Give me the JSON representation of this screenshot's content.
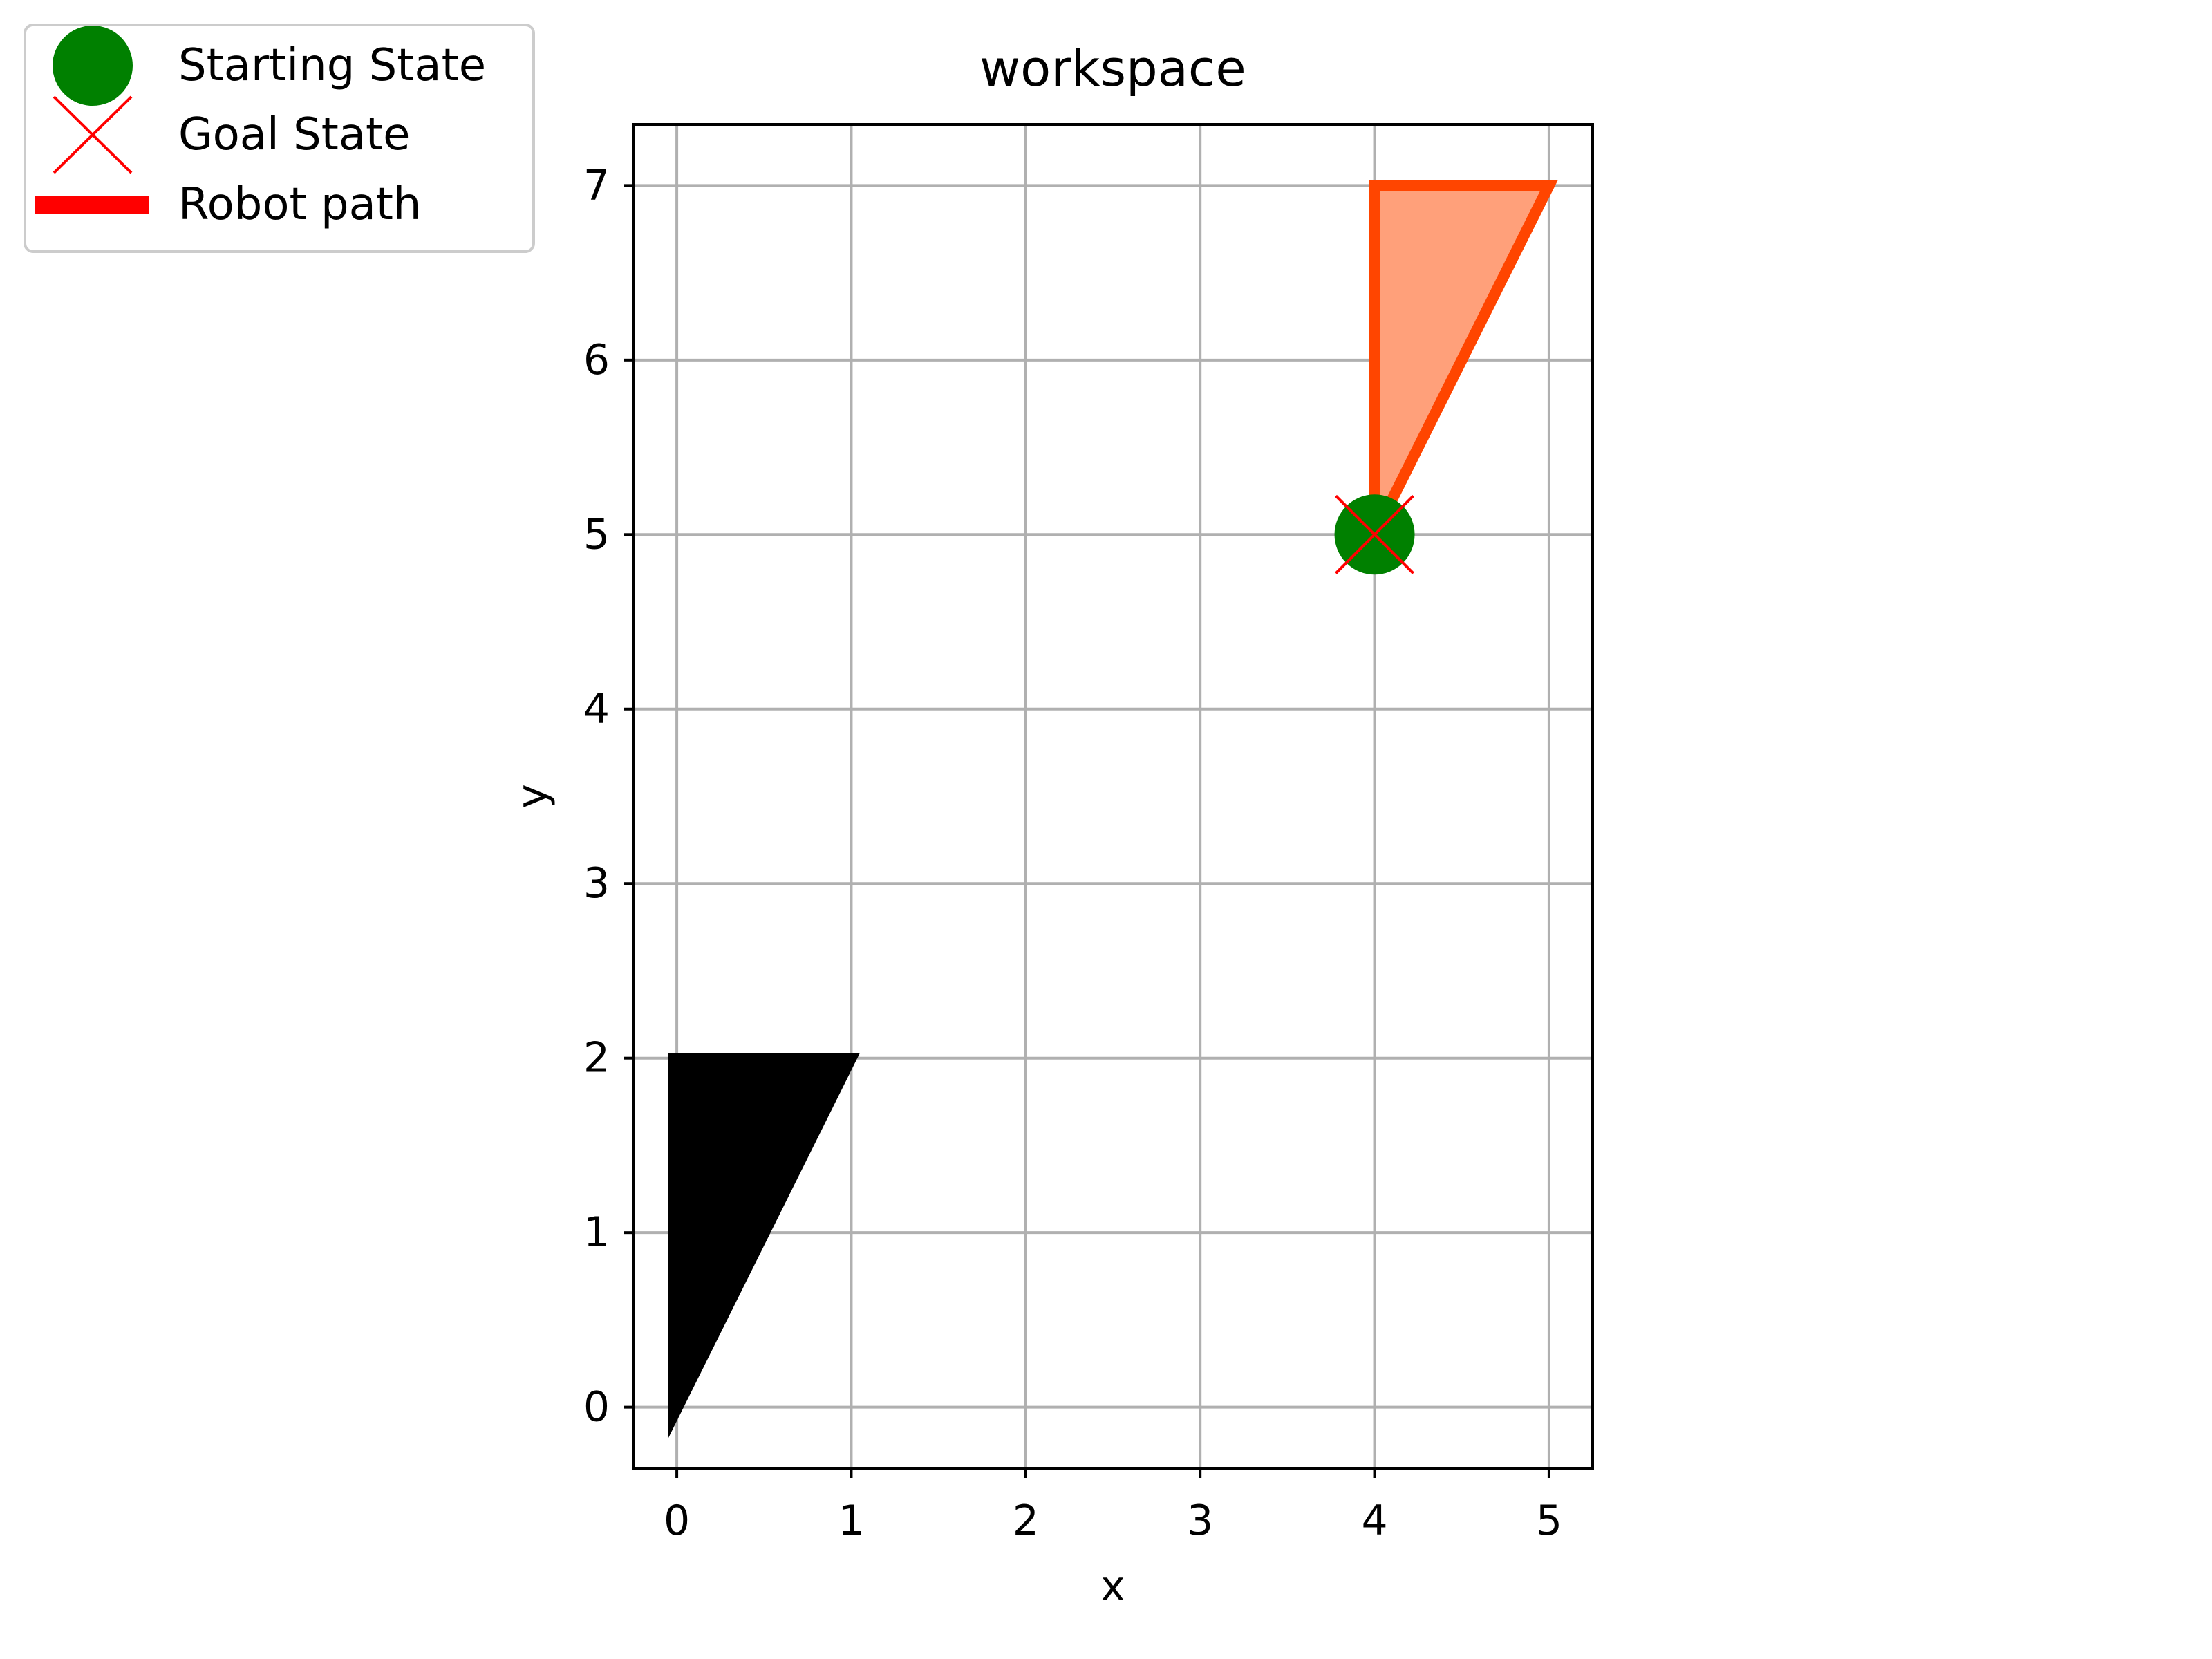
{
  "chart_data": {
    "type": "scatter",
    "title": "workspace",
    "xlabel": "x",
    "ylabel": "y",
    "xlim": [
      -0.25,
      5.25
    ],
    "ylim": [
      -0.35,
      7.35
    ],
    "xticks": [
      0,
      1,
      2,
      3,
      4,
      5
    ],
    "yticks": [
      0,
      1,
      2,
      3,
      4,
      5,
      6,
      7
    ],
    "grid": true,
    "legend": {
      "placement": "outside-top-left",
      "entries": [
        {
          "label": "Starting State",
          "marker": "circle",
          "color": "#008000"
        },
        {
          "label": "Goal State",
          "marker": "x",
          "color": "#ff0000"
        },
        {
          "label": "Robot path",
          "marker": "line",
          "color": "#ff0000"
        }
      ]
    },
    "obstacles": [
      {
        "vertices": [
          [
            -0.05,
            -0.18
          ],
          [
            -0.05,
            2.03
          ],
          [
            1.05,
            2.03
          ]
        ],
        "fill": "#000000"
      }
    ],
    "robot": {
      "vertices": [
        [
          4,
          5
        ],
        [
          4,
          7
        ],
        [
          5,
          7
        ]
      ],
      "fill": "#ffa07a",
      "edge": "#ff4500"
    },
    "start_state": {
      "x": 4,
      "y": 5,
      "color": "#008000"
    },
    "goal_state": {
      "x": 4,
      "y": 5,
      "color": "#ff0000"
    }
  }
}
